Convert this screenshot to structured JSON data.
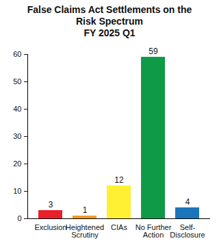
{
  "chart_data": {
    "type": "bar",
    "title": "False Claims Act Settlements on the Risk Spectrum",
    "subtitle": "FY 2025 Q1",
    "categories": [
      "Exclusion",
      "Heightened Scrutiny",
      "CIAs",
      "No Further Action",
      "Self-Disclosure"
    ],
    "values": [
      3,
      1,
      12,
      59,
      4
    ],
    "colors": [
      "#e8202a",
      "#f39a1f",
      "#fff033",
      "#0f9a48",
      "#1b75bb"
    ],
    "ylim": [
      0,
      60
    ],
    "yticks": [
      0,
      10,
      20,
      30,
      40,
      50,
      60
    ],
    "grid": false,
    "data_labels": true
  }
}
